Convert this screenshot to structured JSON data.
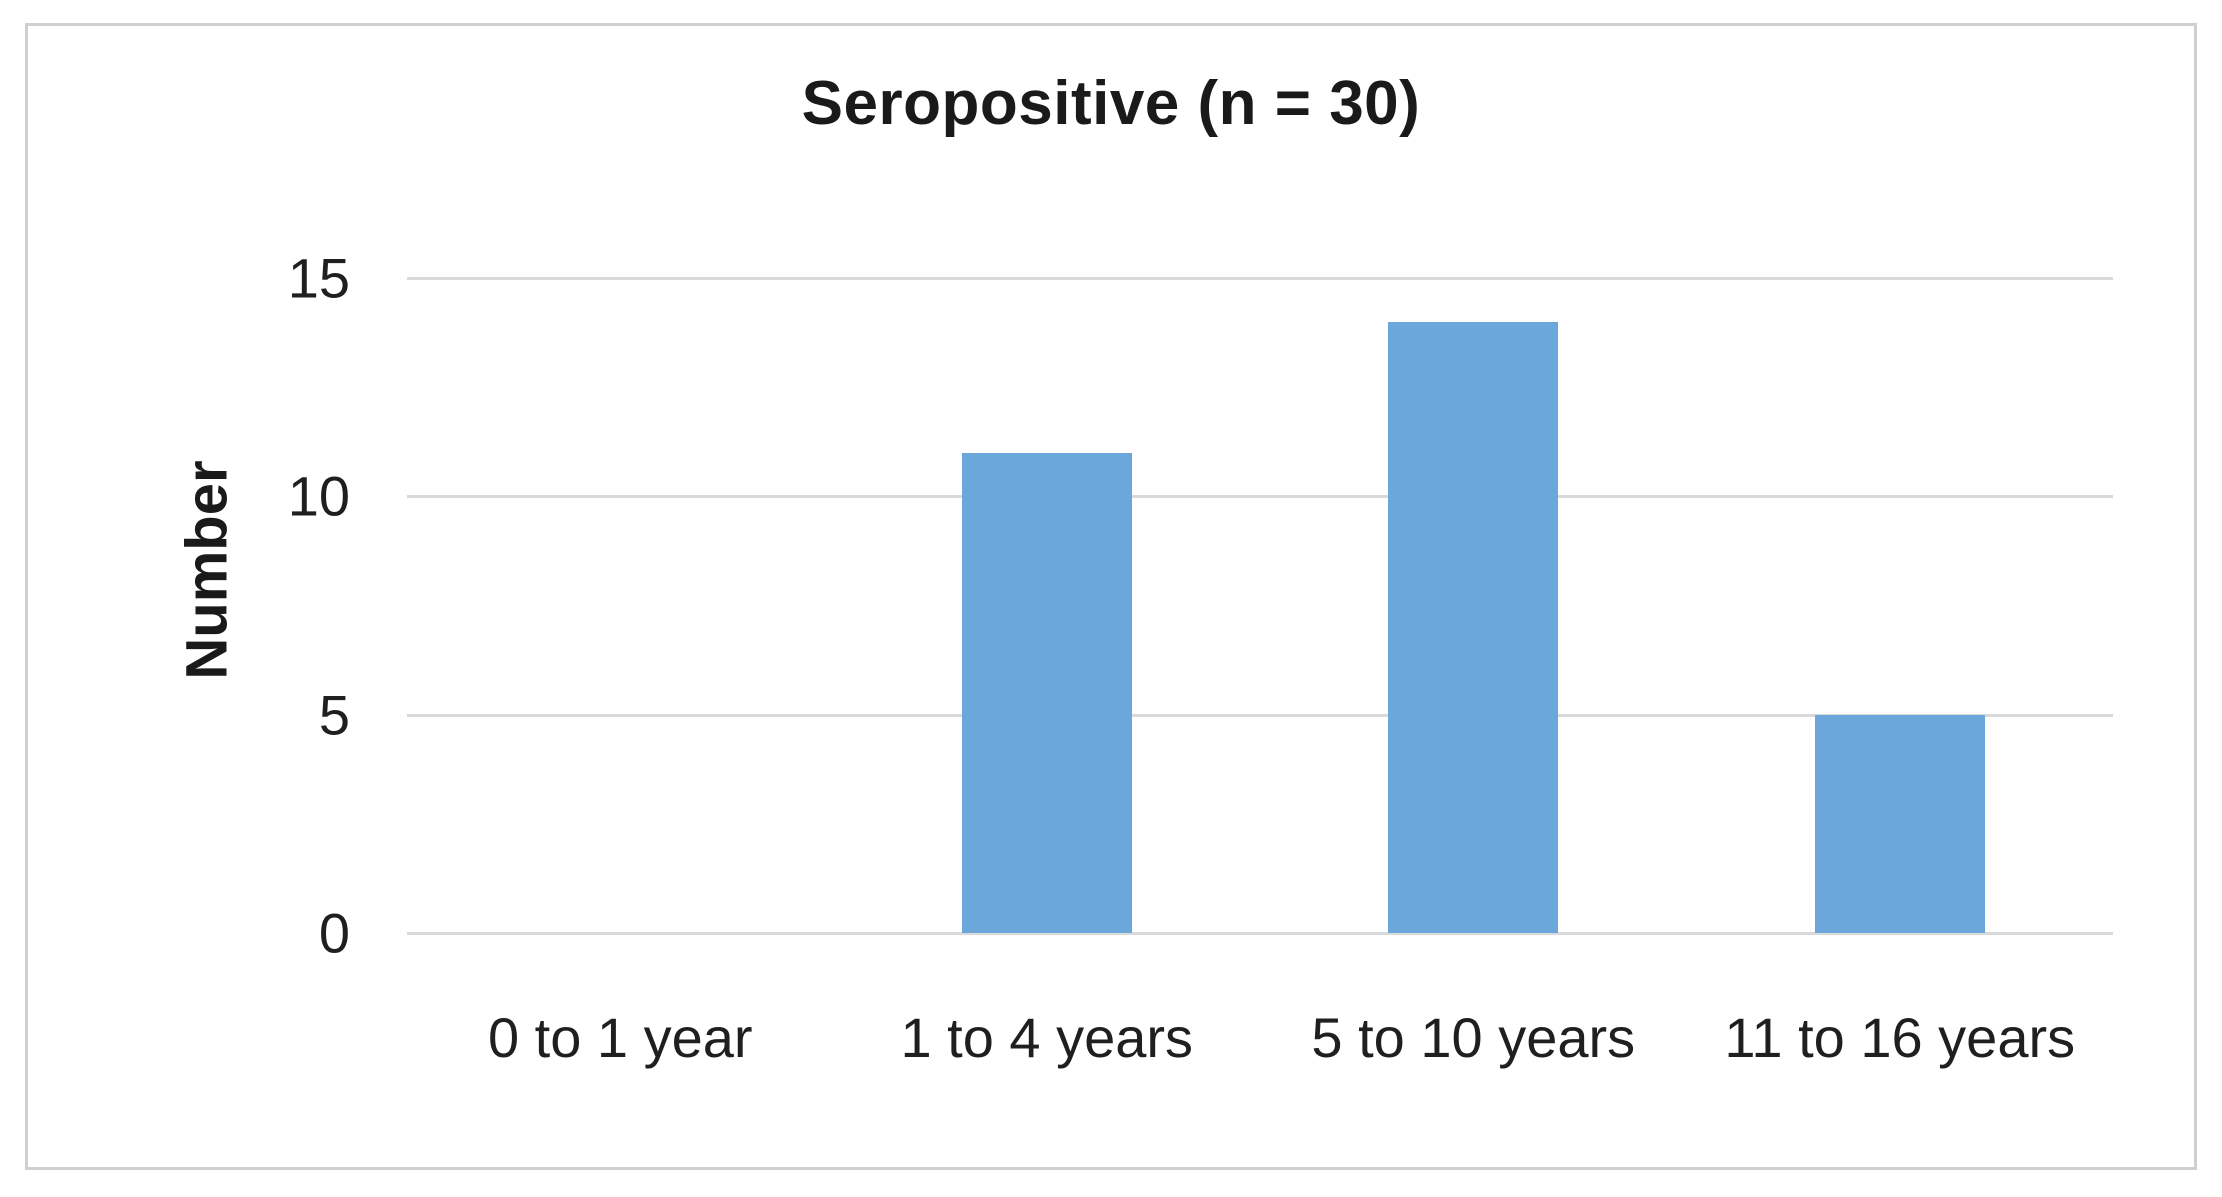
{
  "chart": {
    "title": "Seropositive (n = 30)",
    "ylabel": "Number"
  },
  "chart_data": {
    "type": "bar",
    "title": "Seropositive (n = 30)",
    "categories": [
      "0 to 1 year",
      "1 to 4 years",
      "5 to 10 years",
      "11 to 16 years"
    ],
    "values": [
      0,
      11,
      14,
      5
    ],
    "xlabel": "",
    "ylabel": "Number",
    "ylim": [
      0,
      15
    ],
    "yticks": [
      0,
      5,
      10,
      15
    ],
    "grid": true,
    "legend": false,
    "bar_color": "#6BA7DB",
    "gridline_color": "#D9D9D9",
    "border_color": "#CFCFCF",
    "text_color": "#1F1F1F"
  }
}
